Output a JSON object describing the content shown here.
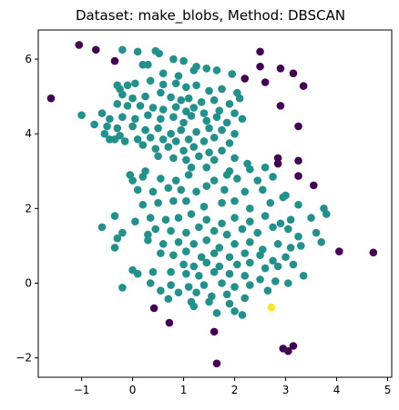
{
  "chart_data": {
    "type": "scatter",
    "title": "Dataset: make_blobs, Method: DBSCAN",
    "xlabel": "",
    "ylabel": "",
    "xlim": [
      -1.85,
      5.08
    ],
    "ylim": [
      -2.52,
      6.78
    ],
    "xticks": [
      -1,
      0,
      1,
      2,
      3,
      4,
      5
    ],
    "yticks": [
      -2,
      0,
      2,
      4,
      6
    ],
    "grid": false,
    "legend": "none",
    "colors": {
      "core_cluster": "#21918c",
      "noise": "#440154",
      "small_cluster": "#fde725"
    },
    "series": [
      {
        "label_value": -1,
        "color": "#440154",
        "points": [
          [
            -1.6,
            4.95
          ],
          [
            -1.05,
            6.38
          ],
          [
            -0.72,
            6.25
          ],
          [
            -0.35,
            5.95
          ],
          [
            2.2,
            5.48
          ],
          [
            2.5,
            6.2
          ],
          [
            2.5,
            5.8
          ],
          [
            2.9,
            5.75
          ],
          [
            3.15,
            5.62
          ],
          [
            2.6,
            5.38
          ],
          [
            3.35,
            5.28
          ],
          [
            2.9,
            4.75
          ],
          [
            3.25,
            4.2
          ],
          [
            2.85,
            3.35
          ],
          [
            3.25,
            3.28
          ],
          [
            2.85,
            3.2
          ],
          [
            3.25,
            2.87
          ],
          [
            3.55,
            2.62
          ],
          [
            4.05,
            0.85
          ],
          [
            4.72,
            0.82
          ],
          [
            0.42,
            -0.67
          ],
          [
            0.72,
            -1.06
          ],
          [
            1.6,
            -1.3
          ],
          [
            1.65,
            -2.15
          ],
          [
            2.95,
            -1.75
          ],
          [
            3.05,
            -1.82
          ],
          [
            3.15,
            -1.68
          ]
        ]
      },
      {
        "label_value": 1,
        "color": "#fde725",
        "points": [
          [
            2.72,
            -0.65
          ]
        ]
      },
      {
        "label_value": 0,
        "color": "#21918c",
        "points": [
          [
            -0.2,
            6.25
          ],
          [
            0.1,
            6.2
          ],
          [
            0.45,
            6.22
          ],
          [
            0.52,
            6.15
          ],
          [
            0.2,
            5.85
          ],
          [
            0.3,
            5.85
          ],
          [
            0.8,
            6.0
          ],
          [
            1.0,
            5.95
          ],
          [
            1.2,
            5.7
          ],
          [
            1.25,
            5.8
          ],
          [
            1.45,
            5.75
          ],
          [
            1.65,
            5.7
          ],
          [
            1.95,
            5.6
          ],
          [
            0.6,
            5.62
          ],
          [
            0.9,
            5.55
          ],
          [
            -0.3,
            5.3
          ],
          [
            -0.25,
            5.2
          ],
          [
            -0.1,
            5.3
          ],
          [
            0.05,
            5.35
          ],
          [
            0.35,
            5.42
          ],
          [
            0.6,
            5.32
          ],
          [
            0.85,
            5.35
          ],
          [
            1.05,
            5.25
          ],
          [
            1.25,
            5.3
          ],
          [
            1.5,
            5.15
          ],
          [
            1.75,
            5.2
          ],
          [
            2.05,
            5.1
          ],
          [
            -0.2,
            5.05
          ],
          [
            0.0,
            4.95
          ],
          [
            0.25,
            5.0
          ],
          [
            0.55,
            5.1
          ],
          [
            0.75,
            4.98
          ],
          [
            0.95,
            4.9
          ],
          [
            1.1,
            4.95
          ],
          [
            1.35,
            4.85
          ],
          [
            1.6,
            4.9
          ],
          [
            1.9,
            4.8
          ],
          [
            2.1,
            4.95
          ],
          [
            -0.3,
            4.8
          ],
          [
            -0.1,
            4.75
          ],
          [
            0.15,
            4.75
          ],
          [
            0.4,
            4.7
          ],
          [
            0.6,
            4.65
          ],
          [
            0.85,
            4.72
          ],
          [
            1.05,
            4.6
          ],
          [
            1.2,
            4.7
          ],
          [
            1.4,
            4.55
          ],
          [
            1.7,
            4.62
          ],
          [
            2.0,
            4.55
          ],
          [
            -1.0,
            4.5
          ],
          [
            -0.6,
            4.55
          ],
          [
            -0.45,
            4.4
          ],
          [
            -0.2,
            4.45
          ],
          [
            0.05,
            4.4
          ],
          [
            0.3,
            4.5
          ],
          [
            0.55,
            4.4
          ],
          [
            0.8,
            4.45
          ],
          [
            1.0,
            4.3
          ],
          [
            1.15,
            4.48
          ],
          [
            1.45,
            4.35
          ],
          [
            1.65,
            4.45
          ],
          [
            1.85,
            4.3
          ],
          [
            2.15,
            4.4
          ],
          [
            -0.75,
            4.25
          ],
          [
            -0.5,
            4.2
          ],
          [
            -0.3,
            4.15
          ],
          [
            0.0,
            4.2
          ],
          [
            0.25,
            4.1
          ],
          [
            0.5,
            4.15
          ],
          [
            0.75,
            4.0
          ],
          [
            0.95,
            4.1
          ],
          [
            1.25,
            4.05
          ],
          [
            1.5,
            4.15
          ],
          [
            1.75,
            4.1
          ],
          [
            2.0,
            4.0
          ],
          [
            -0.55,
            4.0
          ],
          [
            -0.25,
            3.95
          ],
          [
            0.1,
            3.85
          ],
          [
            0.35,
            3.9
          ],
          [
            0.6,
            3.85
          ],
          [
            0.85,
            3.8
          ],
          [
            1.1,
            3.85
          ],
          [
            1.4,
            3.8
          ],
          [
            1.6,
            3.9
          ],
          [
            1.9,
            3.75
          ],
          [
            -0.45,
            3.85
          ],
          [
            -0.35,
            3.85
          ],
          [
            -0.15,
            3.8
          ],
          [
            0.2,
            3.7
          ],
          [
            0.45,
            3.6
          ],
          [
            0.7,
            3.65
          ],
          [
            1.0,
            3.55
          ],
          [
            1.2,
            3.65
          ],
          [
            1.5,
            3.5
          ],
          [
            1.75,
            3.55
          ],
          [
            0.5,
            3.4
          ],
          [
            0.8,
            3.35
          ],
          [
            1.05,
            3.3
          ],
          [
            1.3,
            3.4
          ],
          [
            1.6,
            3.3
          ],
          [
            2.0,
            3.35
          ],
          [
            2.25,
            3.2
          ],
          [
            1.15,
            3.1
          ],
          [
            1.45,
            3.1
          ],
          [
            1.9,
            3.0
          ],
          [
            2.3,
            3.05
          ],
          [
            2.6,
            3.1
          ],
          [
            0.25,
            3.0
          ],
          [
            -0.05,
            2.9
          ],
          [
            0.0,
            2.75
          ],
          [
            0.2,
            2.85
          ],
          [
            0.55,
            2.8
          ],
          [
            0.85,
            2.75
          ],
          [
            1.1,
            2.9
          ],
          [
            1.6,
            2.75
          ],
          [
            1.85,
            2.9
          ],
          [
            2.05,
            2.8
          ],
          [
            2.45,
            2.75
          ],
          [
            2.75,
            2.85
          ],
          [
            0.1,
            2.5
          ],
          [
            0.4,
            2.45
          ],
          [
            0.7,
            2.55
          ],
          [
            0.95,
            2.5
          ],
          [
            1.25,
            2.45
          ],
          [
            1.45,
            2.6
          ],
          [
            1.8,
            2.5
          ],
          [
            2.2,
            2.45
          ],
          [
            2.55,
            2.5
          ],
          [
            2.95,
            2.3
          ],
          [
            3.0,
            2.35
          ],
          [
            0.2,
            2.1
          ],
          [
            0.5,
            2.15
          ],
          [
            0.8,
            2.2
          ],
          [
            1.05,
            2.2
          ],
          [
            1.4,
            2.05
          ],
          [
            1.75,
            2.15
          ],
          [
            2.0,
            2.2
          ],
          [
            2.3,
            2.0
          ],
          [
            2.7,
            2.15
          ],
          [
            3.25,
            2.1
          ],
          [
            3.75,
            2.0
          ],
          [
            3.8,
            1.85
          ],
          [
            -0.6,
            1.5
          ],
          [
            -0.35,
            1.8
          ],
          [
            -0.3,
            1.2
          ],
          [
            0.05,
            1.65
          ],
          [
            0.35,
            1.75
          ],
          [
            0.65,
            1.7
          ],
          [
            0.9,
            1.75
          ],
          [
            1.15,
            1.85
          ],
          [
            1.45,
            1.7
          ],
          [
            1.75,
            1.6
          ],
          [
            2.0,
            1.75
          ],
          [
            2.3,
            1.65
          ],
          [
            2.6,
            1.8
          ],
          [
            2.9,
            1.6
          ],
          [
            3.1,
            1.7
          ],
          [
            3.5,
            1.75
          ],
          [
            -0.2,
            1.35
          ],
          [
            0.3,
            1.3
          ],
          [
            0.45,
            1.45
          ],
          [
            0.75,
            1.4
          ],
          [
            1.05,
            1.35
          ],
          [
            1.3,
            1.5
          ],
          [
            1.6,
            1.4
          ],
          [
            1.85,
            1.3
          ],
          [
            2.15,
            1.45
          ],
          [
            2.45,
            1.35
          ],
          [
            2.75,
            1.5
          ],
          [
            3.05,
            1.45
          ],
          [
            3.25,
            1.25
          ],
          [
            3.6,
            1.35
          ],
          [
            -0.35,
            0.95
          ],
          [
            0.3,
            1.15
          ],
          [
            0.6,
            1.05
          ],
          [
            0.9,
            1.1
          ],
          [
            1.2,
            1.05
          ],
          [
            1.45,
            1.15
          ],
          [
            1.7,
            0.95
          ],
          [
            2.0,
            1.05
          ],
          [
            2.3,
            1.1
          ],
          [
            2.55,
            0.9
          ],
          [
            2.85,
            1.05
          ],
          [
            3.1,
            0.95
          ],
          [
            3.3,
            1.0
          ],
          [
            3.7,
            1.1
          ],
          [
            0.55,
            0.8
          ],
          [
            0.8,
            0.75
          ],
          [
            1.05,
            0.85
          ],
          [
            1.35,
            0.7
          ],
          [
            1.6,
            0.8
          ],
          [
            1.9,
            0.7
          ],
          [
            2.2,
            0.8
          ],
          [
            2.5,
            0.75
          ],
          [
            2.75,
            0.6
          ],
          [
            3.0,
            0.7
          ],
          [
            1.0,
            0.5
          ],
          [
            1.2,
            0.45
          ],
          [
            1.45,
            0.55
          ],
          [
            1.7,
            0.45
          ],
          [
            2.05,
            0.5
          ],
          [
            2.3,
            0.55
          ],
          [
            2.6,
            0.4
          ],
          [
            2.85,
            0.45
          ],
          [
            3.15,
            0.5
          ],
          [
            0.0,
            0.35
          ],
          [
            0.1,
            0.25
          ],
          [
            0.4,
            0.3
          ],
          [
            0.75,
            0.3
          ],
          [
            1.05,
            0.25
          ],
          [
            1.3,
            0.2
          ],
          [
            1.6,
            0.3
          ],
          [
            1.9,
            0.25
          ],
          [
            2.2,
            0.2
          ],
          [
            2.5,
            0.1
          ],
          [
            2.8,
            0.05
          ],
          [
            3.05,
            0.0
          ],
          [
            3.35,
            0.2
          ],
          [
            0.35,
            0.0
          ],
          [
            0.75,
            -0.05
          ],
          [
            1.1,
            -0.1
          ],
          [
            1.4,
            -0.05
          ],
          [
            1.75,
            0.0
          ],
          [
            2.0,
            -0.1
          ],
          [
            2.3,
            -0.05
          ],
          [
            2.65,
            -0.2
          ],
          [
            -0.2,
            -0.12
          ],
          [
            0.55,
            -0.2
          ],
          [
            0.9,
            -0.25
          ],
          [
            1.25,
            -0.25
          ],
          [
            1.55,
            -0.35
          ],
          [
            1.85,
            -0.3
          ],
          [
            2.2,
            -0.4
          ],
          [
            0.7,
            -0.42
          ],
          [
            1.15,
            -0.5
          ],
          [
            1.5,
            -0.5
          ],
          [
            1.9,
            -0.55
          ],
          [
            1.2,
            -0.62
          ],
          [
            1.65,
            -0.8
          ],
          [
            2.0,
            -0.75
          ],
          [
            2.15,
            -0.85
          ]
        ]
      }
    ]
  }
}
